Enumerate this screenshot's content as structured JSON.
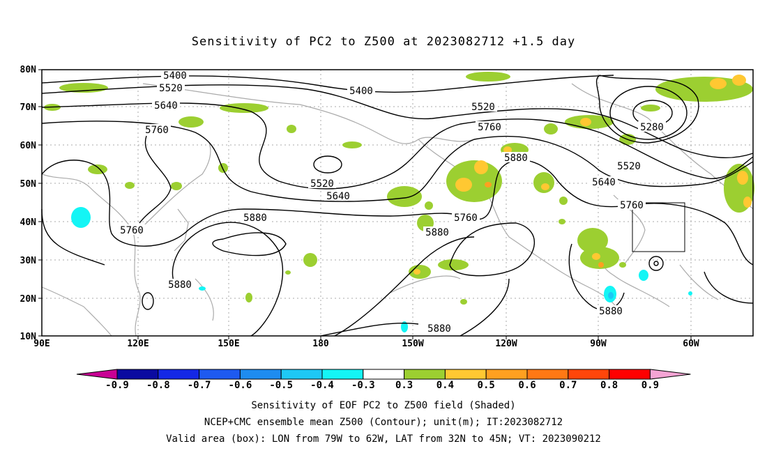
{
  "title": "Sensitivity of PC2 to Z500 at 2023082712 +1.5 day",
  "axes": {
    "lat_labels": [
      "80N",
      "70N",
      "60N",
      "50N",
      "40N",
      "30N",
      "20N",
      "10N"
    ],
    "lon_labels": [
      "90E",
      "120E",
      "150E",
      "180",
      "150W",
      "120W",
      "90W",
      "60W"
    ]
  },
  "contours": [
    {
      "label": "5400",
      "points": [
        [
          251,
          108
        ],
        [
          518,
          130
        ]
      ]
    },
    {
      "label": "5520",
      "points": [
        [
          245,
          126
        ],
        [
          462,
          263
        ],
        [
          693,
          153
        ],
        [
          902,
          238
        ]
      ]
    },
    {
      "label": "5640",
      "points": [
        [
          238,
          151
        ],
        [
          485,
          281
        ],
        [
          866,
          261
        ]
      ]
    },
    {
      "label": "5760",
      "points": [
        [
          225,
          186
        ],
        [
          668,
          312
        ],
        [
          702,
          182
        ],
        [
          189,
          330
        ],
        [
          906,
          294
        ]
      ]
    },
    {
      "label": "5880",
      "points": [
        [
          366,
          312
        ],
        [
          740,
          226
        ],
        [
          627,
          333
        ],
        [
          258,
          408
        ],
        [
          876,
          446
        ],
        [
          630,
          471
        ]
      ]
    },
    {
      "label": "5280",
      "points": [
        [
          935,
          182
        ]
      ]
    }
  ],
  "valid_box": {
    "lon_range": "79W to 62W",
    "lat_range": "32N to 45N"
  },
  "colorbar": {
    "labels": [
      "-0.9",
      "-0.8",
      "-0.7",
      "-0.6",
      "-0.5",
      "-0.4",
      "-0.3",
      "0.3",
      "0.4",
      "0.5",
      "0.6",
      "0.7",
      "0.8",
      "0.9"
    ],
    "colors": [
      "#0a0aa0",
      "#1428e6",
      "#1e5af0",
      "#1e8cf0",
      "#1ec8f5",
      "#14f5f5",
      "#ffffff",
      "#9ccf31",
      "#ffc832",
      "#ffa020",
      "#ff7814",
      "#ff460a",
      "#ff0000"
    ],
    "low_end_color": "#c80094",
    "high_end_color": "#f4a4d4"
  },
  "footer": [
    "Sensitivity of EOF PC2 to Z500 field (Shaded)",
    "NCEP+CMC ensemble mean Z500 (Contour); unit(m); IT:2023082712",
    "Valid area (box): LON from 79W to 62W, LAT from 32N to 45N; VT: 2023090212"
  ]
}
